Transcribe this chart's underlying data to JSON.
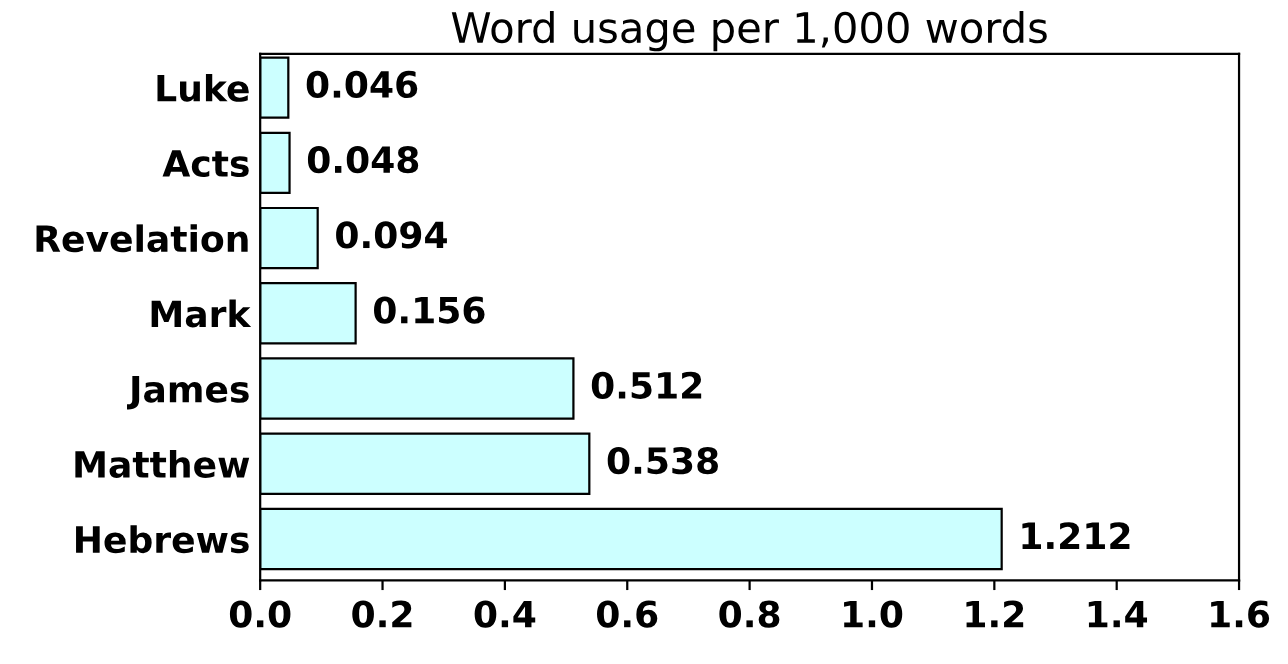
{
  "chart_data": {
    "type": "bar",
    "orientation": "horizontal",
    "title": "Word usage per 1,000 words",
    "categories": [
      "Luke",
      "Acts",
      "Revelation",
      "Mark",
      "James",
      "Matthew",
      "Hebrews"
    ],
    "values": [
      0.046,
      0.048,
      0.094,
      0.156,
      0.512,
      0.538,
      1.212
    ],
    "color": "#ccffff",
    "data_labels": true,
    "grid": false,
    "legend": false,
    "xlim": [
      0.0,
      1.6
    ],
    "xticks": [
      {
        "value": 0,
        "label": "0.0"
      },
      0.2,
      0.4,
      0.6,
      0.8,
      {
        "value": 1,
        "label": "1.0"
      },
      1.2,
      1.4,
      1.6
    ]
  }
}
